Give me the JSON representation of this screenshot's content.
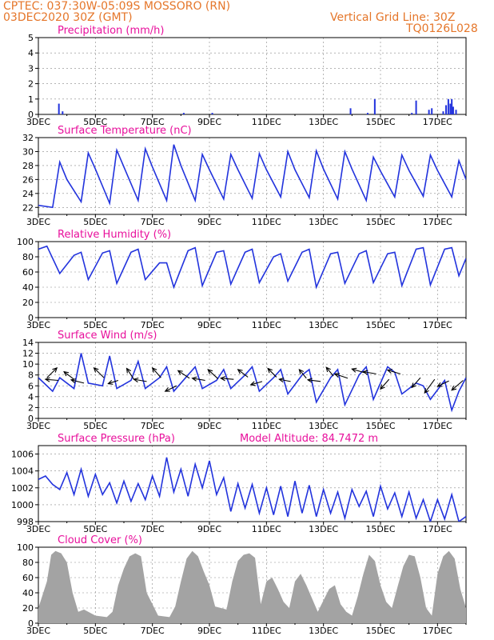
{
  "header": {
    "line1": "CPTEC:  037:30W-05:09S  MOSSORO (RN)",
    "line2": "03DEC2020 30Z (GMT)",
    "grid_note": "Vertical Grid Line: 30Z",
    "run_code": "TQ0126L028"
  },
  "colors": {
    "header": "#e5762a",
    "title": "#e8109c",
    "line": "#2233dd",
    "bar": "#2233dd",
    "cloud": "#a3a3a3",
    "arrow": "#000000"
  },
  "x_tick_labels": [
    "3DEC",
    "5DEC",
    "7DEC",
    "9DEC",
    "11DEC",
    "13DEC",
    "15DEC",
    "17DEC"
  ],
  "chart_data": [
    {
      "type": "bar",
      "title": "Precipitation (mm/h)",
      "ylim": [
        0,
        5
      ],
      "yticks": [
        "0",
        "1",
        "2",
        "3",
        "4",
        "5"
      ],
      "xlim": [
        0,
        15
      ],
      "x": [
        0.72,
        0.85,
        5.1,
        6.1,
        10.95,
        11.55,
        11.8,
        13.1,
        13.25,
        13.7,
        13.8,
        14.2,
        14.3,
        14.38,
        14.45,
        14.5,
        14.55,
        14.65
      ],
      "values": [
        0.7,
        0.2,
        0.1,
        0.1,
        0.4,
        0.1,
        1.0,
        0.1,
        0.9,
        0.3,
        0.4,
        0.2,
        0.6,
        1.0,
        0.7,
        1.0,
        0.5,
        0.3
      ]
    },
    {
      "type": "line",
      "title": "Surface Temperature (nC)",
      "ylim": [
        21,
        32
      ],
      "yticks": [
        "22",
        "24",
        "26",
        "28",
        "30",
        "32"
      ],
      "xlim": [
        0,
        15
      ],
      "x": [
        0.0,
        0.5,
        0.75,
        1.0,
        1.5,
        1.75,
        2.0,
        2.5,
        2.75,
        3.0,
        3.5,
        3.75,
        4.0,
        4.5,
        4.75,
        5.0,
        5.5,
        5.75,
        6.0,
        6.5,
        6.75,
        7.0,
        7.5,
        7.75,
        8.0,
        8.5,
        8.75,
        9.0,
        9.5,
        9.75,
        10.0,
        10.5,
        10.75,
        11.0,
        11.5,
        11.75,
        12.0,
        12.5,
        12.75,
        13.0,
        13.5,
        13.75,
        14.0,
        14.5,
        14.75,
        15.0
      ],
      "values": [
        22.3,
        22.0,
        28.5,
        26.0,
        22.8,
        29.8,
        27.5,
        22.6,
        30.2,
        27.8,
        23.0,
        30.4,
        27.8,
        23.0,
        31.0,
        28.0,
        23.0,
        29.6,
        27.4,
        23.2,
        29.6,
        27.4,
        23.3,
        29.7,
        27.4,
        23.5,
        30.0,
        27.4,
        23.4,
        30.1,
        27.5,
        23.2,
        30.0,
        27.5,
        23.0,
        29.2,
        27.2,
        23.5,
        29.5,
        27.3,
        23.6,
        29.5,
        27.3,
        23.5,
        28.7,
        26.0
      ]
    },
    {
      "type": "line",
      "title": "Relative Humidity (%)",
      "ylim": [
        0,
        100
      ],
      "yticks": [
        "0",
        "20",
        "40",
        "60",
        "80",
        "100"
      ],
      "xlim": [
        0,
        15
      ],
      "x": [
        0.0,
        0.3,
        0.75,
        1.25,
        1.5,
        1.75,
        2.25,
        2.5,
        2.75,
        3.25,
        3.5,
        3.75,
        4.25,
        4.5,
        4.75,
        5.25,
        5.5,
        5.75,
        6.25,
        6.5,
        6.75,
        7.25,
        7.5,
        7.75,
        8.25,
        8.5,
        8.75,
        9.25,
        9.5,
        9.75,
        10.25,
        10.5,
        10.75,
        11.25,
        11.5,
        11.75,
        12.25,
        12.5,
        12.75,
        13.25,
        13.5,
        13.75,
        14.25,
        14.5,
        14.75,
        15.0
      ],
      "values": [
        90,
        94,
        58,
        82,
        86,
        50,
        85,
        88,
        45,
        86,
        90,
        50,
        72,
        72,
        40,
        88,
        92,
        42,
        86,
        88,
        44,
        86,
        90,
        46,
        80,
        84,
        48,
        86,
        90,
        40,
        84,
        86,
        45,
        84,
        88,
        46,
        84,
        86,
        42,
        90,
        92,
        43,
        90,
        92,
        55,
        78
      ]
    },
    {
      "type": "line",
      "title": "Surface Wind (m/s)",
      "ylim": [
        0,
        14
      ],
      "yticks": [
        "0",
        "2",
        "4",
        "6",
        "8",
        "10",
        "12",
        "14"
      ],
      "xlim": [
        0,
        15
      ],
      "x": [
        0.0,
        0.5,
        0.75,
        1.25,
        1.5,
        1.75,
        2.25,
        2.5,
        2.75,
        3.25,
        3.5,
        3.75,
        4.25,
        4.5,
        4.75,
        5.25,
        5.5,
        5.75,
        6.25,
        6.5,
        6.75,
        7.25,
        7.5,
        7.75,
        8.25,
        8.5,
        8.75,
        9.25,
        9.5,
        9.75,
        10.25,
        10.5,
        10.75,
        11.25,
        11.5,
        11.75,
        12.25,
        12.5,
        12.75,
        13.25,
        13.5,
        13.75,
        14.25,
        14.5,
        14.75,
        15.0
      ],
      "values": [
        7.5,
        5.0,
        7.5,
        5.5,
        12.0,
        6.5,
        6.0,
        11.5,
        5.5,
        7.0,
        10.5,
        5.5,
        7.5,
        9.5,
        5.0,
        8.0,
        9.5,
        5.5,
        7.0,
        9.0,
        5.5,
        8.0,
        9.5,
        5.0,
        7.5,
        9.0,
        4.5,
        8.0,
        9.0,
        3.0,
        7.5,
        9.0,
        2.5,
        8.0,
        9.5,
        3.5,
        9.5,
        8.5,
        4.5,
        6.5,
        6.0,
        3.5,
        7.0,
        1.5,
        5.0,
        7.5
      ],
      "arrows": [
        {
          "x": 0.3,
          "y": 7.5,
          "dx": 0.35,
          "dy": 1.8
        },
        {
          "x": 0.7,
          "y": 7.0,
          "dx": -0.45,
          "dy": 0.2
        },
        {
          "x": 1.25,
          "y": 7.2,
          "dx": -0.35,
          "dy": 1.4
        },
        {
          "x": 1.6,
          "y": 6.5,
          "dx": -0.45,
          "dy": 0.6
        },
        {
          "x": 2.3,
          "y": 7.5,
          "dx": -0.35,
          "dy": 1.8
        },
        {
          "x": 2.8,
          "y": 7.0,
          "dx": -0.35,
          "dy": -0.6
        },
        {
          "x": 3.35,
          "y": 7.2,
          "dx": -0.25,
          "dy": 2.0
        },
        {
          "x": 3.8,
          "y": 6.8,
          "dx": -0.45,
          "dy": 0.4
        },
        {
          "x": 4.3,
          "y": 7.5,
          "dx": -0.3,
          "dy": 1.8
        },
        {
          "x": 4.85,
          "y": 6.0,
          "dx": -0.4,
          "dy": -1.0
        },
        {
          "x": 5.3,
          "y": 7.4,
          "dx": -0.4,
          "dy": 1.4
        },
        {
          "x": 5.85,
          "y": 7.0,
          "dx": -0.45,
          "dy": 0.4
        },
        {
          "x": 6.3,
          "y": 7.3,
          "dx": -0.35,
          "dy": 1.7
        },
        {
          "x": 6.85,
          "y": 7.2,
          "dx": -0.45,
          "dy": 0.2
        },
        {
          "x": 7.35,
          "y": 7.6,
          "dx": -0.35,
          "dy": 1.4
        },
        {
          "x": 7.85,
          "y": 6.8,
          "dx": -0.4,
          "dy": -0.6
        },
        {
          "x": 8.35,
          "y": 7.6,
          "dx": -0.3,
          "dy": 1.6
        },
        {
          "x": 8.85,
          "y": 6.8,
          "dx": -0.4,
          "dy": 0.4
        },
        {
          "x": 9.4,
          "y": 7.4,
          "dx": -0.25,
          "dy": 1.6
        },
        {
          "x": 9.9,
          "y": 6.8,
          "dx": -0.45,
          "dy": 0.3
        },
        {
          "x": 10.35,
          "y": 7.8,
          "dx": -0.25,
          "dy": 1.6
        },
        {
          "x": 10.85,
          "y": 7.4,
          "dx": -0.45,
          "dy": 0.8
        },
        {
          "x": 11.45,
          "y": 8.4,
          "dx": -0.45,
          "dy": 0.7
        },
        {
          "x": 11.85,
          "y": 8.2,
          "dx": -0.45,
          "dy": 0.4
        },
        {
          "x": 12.3,
          "y": 7.2,
          "dx": -0.3,
          "dy": -1.8
        },
        {
          "x": 12.7,
          "y": 8.2,
          "dx": -0.45,
          "dy": 0.7
        },
        {
          "x": 13.4,
          "y": 7.5,
          "dx": -0.3,
          "dy": -1.8
        },
        {
          "x": 13.9,
          "y": 7.2,
          "dx": -0.35,
          "dy": -2.5
        },
        {
          "x": 14.4,
          "y": 6.9,
          "dx": -0.4,
          "dy": -1.0
        },
        {
          "x": 14.9,
          "y": 7.0,
          "dx": -0.4,
          "dy": -1.8
        }
      ]
    },
    {
      "type": "line",
      "title": "Surface Pressure (hPa)",
      "annotation": "Model Altitude: 84.7472  m",
      "ylim": [
        998,
        1007
      ],
      "yticks": [
        "998",
        "1000",
        "1002",
        "1004",
        "1006"
      ],
      "xlim": [
        0,
        15
      ],
      "x": [
        0.0,
        0.25,
        0.5,
        0.75,
        1.0,
        1.25,
        1.5,
        1.75,
        2.0,
        2.25,
        2.5,
        2.75,
        3.0,
        3.25,
        3.5,
        3.75,
        4.0,
        4.25,
        4.5,
        4.75,
        5.0,
        5.25,
        5.5,
        5.75,
        6.0,
        6.25,
        6.5,
        6.75,
        7.0,
        7.25,
        7.5,
        7.75,
        8.0,
        8.25,
        8.5,
        8.75,
        9.0,
        9.25,
        9.5,
        9.75,
        10.0,
        10.25,
        10.5,
        10.75,
        11.0,
        11.25,
        11.5,
        11.75,
        12.0,
        12.25,
        12.5,
        12.75,
        13.0,
        13.25,
        13.5,
        13.75,
        14.0,
        14.25,
        14.5,
        14.75,
        15.0
      ],
      "values": [
        1003.0,
        1003.4,
        1002.4,
        1001.8,
        1003.8,
        1001.2,
        1004.2,
        1001.0,
        1003.6,
        1001.2,
        1002.6,
        1000.2,
        1002.8,
        1000.4,
        1002.5,
        1000.6,
        1003.4,
        1001.0,
        1005.6,
        1001.5,
        1004.2,
        1001.0,
        1004.8,
        1002.0,
        1005.2,
        1001.2,
        1003.2,
        999.2,
        1002.5,
        999.6,
        1002.4,
        999.0,
        1002.0,
        998.8,
        1002.2,
        998.6,
        1002.8,
        999.0,
        1002.3,
        998.6,
        1001.8,
        999.0,
        1001.5,
        998.4,
        1001.8,
        999.8,
        1001.6,
        998.6,
        1002.2,
        999.5,
        1001.4,
        998.6,
        1001.5,
        998.4,
        1000.6,
        998.0,
        1000.6,
        998.3,
        1001.2,
        998.0,
        998.6
      ]
    },
    {
      "type": "area",
      "title": "Cloud Cover (%)",
      "ylim": [
        0,
        100
      ],
      "yticks": [
        "0",
        "20",
        "40",
        "60",
        "80",
        "100"
      ],
      "xlim": [
        0,
        15
      ],
      "x": [
        0.0,
        0.3,
        0.45,
        0.6,
        0.8,
        1.0,
        1.2,
        1.4,
        1.6,
        2.0,
        2.4,
        2.6,
        2.8,
        3.0,
        3.2,
        3.4,
        3.6,
        3.8,
        4.2,
        4.6,
        4.8,
        5.0,
        5.2,
        5.4,
        5.6,
        5.8,
        6.0,
        6.2,
        6.6,
        6.8,
        7.0,
        7.2,
        7.4,
        7.6,
        7.8,
        8.0,
        8.2,
        8.4,
        8.6,
        8.8,
        9.0,
        9.2,
        9.4,
        9.8,
        10.0,
        10.2,
        10.4,
        10.6,
        10.8,
        11.0,
        11.2,
        11.4,
        11.6,
        11.8,
        12.0,
        12.2,
        12.4,
        12.6,
        12.8,
        13.0,
        13.2,
        13.4,
        13.6,
        13.8,
        14.0,
        14.2,
        14.4,
        14.6,
        14.8,
        15.0
      ],
      "values": [
        20,
        55,
        90,
        95,
        92,
        80,
        40,
        15,
        18,
        10,
        8,
        15,
        50,
        72,
        88,
        92,
        88,
        40,
        10,
        8,
        22,
        55,
        85,
        95,
        88,
        68,
        50,
        22,
        18,
        55,
        82,
        90,
        92,
        86,
        25,
        55,
        60,
        45,
        28,
        20,
        55,
        65,
        50,
        15,
        30,
        45,
        50,
        25,
        15,
        10,
        35,
        65,
        90,
        82,
        50,
        28,
        20,
        48,
        75,
        90,
        88,
        60,
        20,
        10,
        65,
        88,
        95,
        85,
        45,
        20
      ]
    }
  ]
}
